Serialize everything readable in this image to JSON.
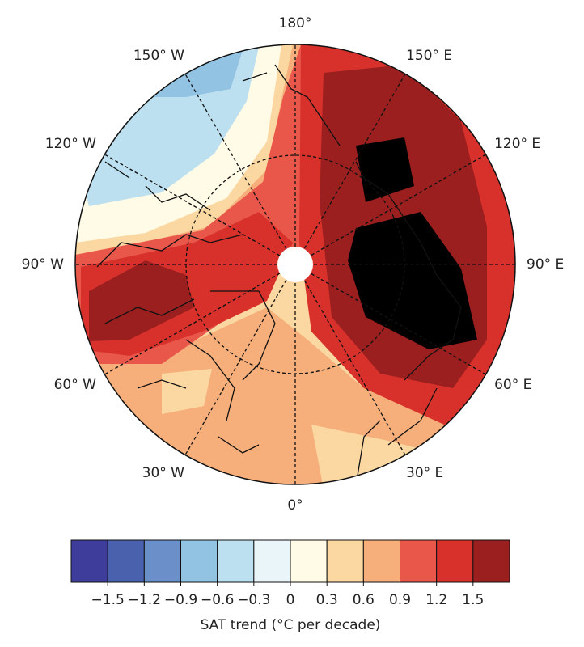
{
  "map": {
    "longitude_labels": [
      "0°",
      "30° E",
      "60° E",
      "90° E",
      "120° E",
      "150° E",
      "180°",
      "150° W",
      "120° W",
      "90° W",
      "60° W",
      "30° W"
    ],
    "colorbar": {
      "colors": [
        "#3f3d9c",
        "#4a62ae",
        "#6b8fc9",
        "#93c3e2",
        "#bde0f0",
        "#e9f5f9",
        "#fffbe6",
        "#fbd8a2",
        "#f6ae7a",
        "#e9574a",
        "#d8312c",
        "#9c1f1f"
      ],
      "lim": [
        -1.8,
        1.8
      ],
      "ticks": [
        {
          "value": -1.5,
          "label": "−1.5"
        },
        {
          "value": -1.2,
          "label": "−1.2"
        },
        {
          "value": -0.9,
          "label": "−0.9"
        },
        {
          "value": -0.6,
          "label": "−0.6"
        },
        {
          "value": -0.3,
          "label": "−0.3"
        },
        0,
        0.3,
        0.6,
        0.9,
        1.2,
        1.5
      ],
      "label": "SAT trend (°C per decade)"
    }
  }
}
